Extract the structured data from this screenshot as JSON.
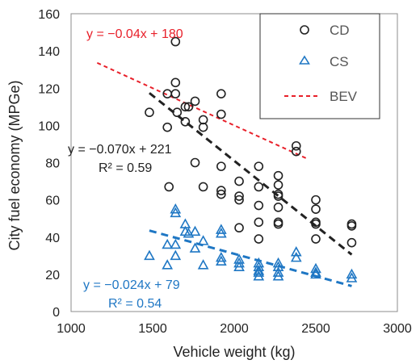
{
  "chart_data": {
    "type": "scatter",
    "xlabel": "Vehicle weight (kg)",
    "ylabel": "City fuel economy (MPGe)",
    "xlim": [
      1000,
      3000
    ],
    "ylim": [
      0,
      160
    ],
    "xticks": [
      1000,
      1500,
      2000,
      2500,
      3000
    ],
    "yticks": [
      0,
      20,
      40,
      60,
      80,
      100,
      120,
      140,
      160
    ],
    "grid": false,
    "legend_position": "top-right",
    "colors": {
      "CD": "#222222",
      "CS": "#1f77c4",
      "BEV": "#e8202a"
    },
    "series": [
      {
        "name": "CD",
        "marker": "circle",
        "points": [
          [
            1480,
            107
          ],
          [
            1590,
            117
          ],
          [
            1590,
            99
          ],
          [
            1600,
            67
          ],
          [
            1640,
            145
          ],
          [
            1640,
            123
          ],
          [
            1640,
            117
          ],
          [
            1650,
            107
          ],
          [
            1700,
            110
          ],
          [
            1700,
            102
          ],
          [
            1720,
            110
          ],
          [
            1760,
            113
          ],
          [
            1760,
            80
          ],
          [
            1810,
            103
          ],
          [
            1810,
            99
          ],
          [
            1810,
            67
          ],
          [
            1920,
            117
          ],
          [
            1920,
            106
          ],
          [
            1920,
            78
          ],
          [
            1920,
            65
          ],
          [
            1920,
            63
          ],
          [
            2030,
            70
          ],
          [
            2030,
            62
          ],
          [
            2030,
            60
          ],
          [
            2030,
            45
          ],
          [
            2150,
            78
          ],
          [
            2150,
            67
          ],
          [
            2150,
            57
          ],
          [
            2150,
            48
          ],
          [
            2150,
            39
          ],
          [
            2270,
            73
          ],
          [
            2270,
            68
          ],
          [
            2270,
            63
          ],
          [
            2270,
            62
          ],
          [
            2270,
            56
          ],
          [
            2270,
            48
          ],
          [
            2270,
            47
          ],
          [
            2380,
            89
          ],
          [
            2380,
            86
          ],
          [
            2500,
            60
          ],
          [
            2500,
            55
          ],
          [
            2500,
            48
          ],
          [
            2500,
            47
          ],
          [
            2500,
            39
          ],
          [
            2720,
            47
          ],
          [
            2720,
            46
          ],
          [
            2720,
            37
          ]
        ]
      },
      {
        "name": "CS",
        "marker": "triangle",
        "points": [
          [
            1480,
            30
          ],
          [
            1590,
            36
          ],
          [
            1590,
            25
          ],
          [
            1640,
            55
          ],
          [
            1640,
            53
          ],
          [
            1640,
            36
          ],
          [
            1640,
            30
          ],
          [
            1700,
            47
          ],
          [
            1700,
            43
          ],
          [
            1720,
            42
          ],
          [
            1760,
            43
          ],
          [
            1760,
            34
          ],
          [
            1810,
            38
          ],
          [
            1810,
            25
          ],
          [
            1920,
            44
          ],
          [
            1920,
            42
          ],
          [
            1920,
            29
          ],
          [
            1920,
            27
          ],
          [
            2030,
            28
          ],
          [
            2030,
            26
          ],
          [
            2030,
            24
          ],
          [
            2150,
            26
          ],
          [
            2150,
            24
          ],
          [
            2150,
            22
          ],
          [
            2150,
            21
          ],
          [
            2150,
            19
          ],
          [
            2270,
            26
          ],
          [
            2270,
            24
          ],
          [
            2270,
            21
          ],
          [
            2270,
            19
          ],
          [
            2380,
            32
          ],
          [
            2380,
            29
          ],
          [
            2500,
            23
          ],
          [
            2500,
            21
          ],
          [
            2500,
            20
          ],
          [
            2720,
            20
          ],
          [
            2720,
            18
          ]
        ]
      },
      {
        "name": "BEV",
        "type": "trendline",
        "style": "dashed",
        "x": [
          1160,
          2450
        ],
        "y": [
          133.6,
          82
        ]
      }
    ],
    "trendlines": [
      {
        "series": "CD",
        "x": [
          1480,
          2720
        ],
        "y": [
          117.4,
          30.6
        ]
      },
      {
        "series": "CS",
        "x": [
          1480,
          2720
        ],
        "y": [
          43.5,
          13.7
        ]
      }
    ],
    "annotations": [
      {
        "text": "y = −0.04x + 180",
        "color": "#e8202a"
      },
      {
        "text": "y = −0.070x + 221",
        "color": "#222222"
      },
      {
        "text": "R² = 0.59",
        "color": "#222222"
      },
      {
        "text": "y = −0.024x + 79",
        "color": "#1f77c4"
      },
      {
        "text": "R² = 0.54",
        "color": "#1f77c4"
      }
    ]
  }
}
